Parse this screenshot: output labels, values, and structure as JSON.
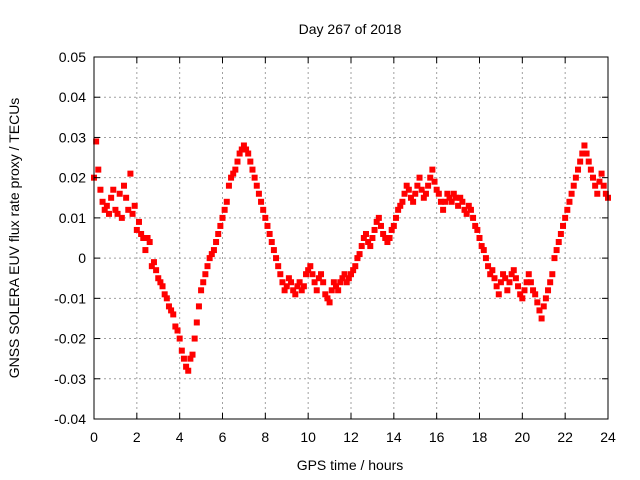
{
  "chart_data": {
    "type": "scatter",
    "title": "Day 267 of 2018",
    "xlabel": "GPS time / hours",
    "ylabel": "GNSS SOLERA EUV flux rate proxy / TECUs",
    "xlim": [
      0,
      24
    ],
    "ylim": [
      -0.04,
      0.05
    ],
    "xticks": [
      0,
      2,
      4,
      6,
      8,
      10,
      12,
      14,
      16,
      18,
      20,
      22,
      24
    ],
    "xtick_labels": [
      "0",
      "2",
      "4",
      "6",
      "8",
      "10",
      "12",
      "14",
      "16",
      "18",
      "20",
      "22",
      "24"
    ],
    "yticks": [
      -0.04,
      -0.03,
      -0.02,
      -0.01,
      0,
      0.01,
      0.02,
      0.03,
      0.04,
      0.05
    ],
    "ytick_labels": [
      "-0.04",
      "-0.03",
      "-0.02",
      "-0.01",
      "0",
      "0.01",
      "0.02",
      "0.03",
      "0.04",
      "0.05"
    ],
    "grid": true,
    "marker": "square",
    "color": "#ff0000",
    "series": [
      {
        "x": [
          0.0,
          0.1,
          0.2,
          0.3,
          0.4,
          0.5,
          0.6,
          0.7,
          0.8,
          0.9,
          1.0,
          1.1,
          1.2,
          1.3,
          1.4,
          1.5,
          1.6,
          1.7,
          1.8,
          1.9,
          2.0,
          2.1,
          2.2,
          2.3,
          2.4,
          2.5,
          2.6,
          2.7,
          2.8,
          2.9,
          3.0,
          3.1,
          3.2,
          3.3,
          3.4,
          3.5,
          3.6,
          3.7,
          3.8,
          3.9,
          4.0,
          4.1,
          4.2,
          4.3,
          4.4,
          4.5,
          4.6,
          4.7,
          4.8,
          4.9,
          5.0,
          5.1,
          5.2,
          5.3,
          5.4,
          5.5,
          5.6,
          5.7,
          5.8,
          5.9,
          6.0,
          6.1,
          6.2,
          6.3,
          6.4,
          6.5,
          6.6,
          6.7,
          6.8,
          6.9,
          7.0,
          7.1,
          7.2,
          7.3,
          7.4,
          7.5,
          7.6,
          7.7,
          7.8,
          7.9,
          8.0,
          8.1,
          8.2,
          8.3,
          8.4,
          8.5,
          8.6,
          8.7,
          8.8,
          8.9,
          9.0,
          9.1,
          9.2,
          9.3,
          9.4,
          9.5,
          9.6,
          9.7,
          9.8,
          9.9,
          10.0,
          10.1,
          10.2,
          10.3,
          10.4,
          10.5,
          10.6,
          10.7,
          10.8,
          10.9,
          11.0,
          11.1,
          11.2,
          11.3,
          11.4,
          11.5,
          11.6,
          11.7,
          11.8,
          11.9,
          12.0,
          12.1,
          12.2,
          12.3,
          12.4,
          12.5,
          12.6,
          12.7,
          12.8,
          12.9,
          13.0,
          13.1,
          13.2,
          13.3,
          13.4,
          13.5,
          13.6,
          13.7,
          13.8,
          13.9,
          14.0,
          14.1,
          14.2,
          14.3,
          14.4,
          14.5,
          14.6,
          14.7,
          14.8,
          14.9,
          15.0,
          15.1,
          15.2,
          15.3,
          15.4,
          15.5,
          15.6,
          15.7,
          15.8,
          15.9,
          16.0,
          16.1,
          16.2,
          16.3,
          16.4,
          16.5,
          16.6,
          16.7,
          16.8,
          16.9,
          17.0,
          17.1,
          17.2,
          17.3,
          17.4,
          17.5,
          17.6,
          17.7,
          17.8,
          17.9,
          18.0,
          18.1,
          18.2,
          18.3,
          18.4,
          18.5,
          18.6,
          18.7,
          18.8,
          18.9,
          19.0,
          19.1,
          19.2,
          19.3,
          19.4,
          19.5,
          19.6,
          19.7,
          19.8,
          19.9,
          20.0,
          20.1,
          20.2,
          20.3,
          20.4,
          20.5,
          20.6,
          20.7,
          20.8,
          20.9,
          21.0,
          21.1,
          21.2,
          21.3,
          21.4,
          21.5,
          21.6,
          21.7,
          21.8,
          21.9,
          22.0,
          22.1,
          22.2,
          22.3,
          22.4,
          22.5,
          22.6,
          22.7,
          22.8,
          22.9,
          23.0,
          23.1,
          23.2,
          23.3,
          23.4,
          23.5,
          23.6,
          23.7,
          23.8,
          23.9,
          24.0
        ],
        "values": [
          0.02,
          0.029,
          0.022,
          0.017,
          0.014,
          0.012,
          0.013,
          0.011,
          0.015,
          0.017,
          0.012,
          0.011,
          0.016,
          0.01,
          0.018,
          0.015,
          0.012,
          0.021,
          0.011,
          0.013,
          0.007,
          0.009,
          0.006,
          0.005,
          0.002,
          0.005,
          0.004,
          -0.002,
          -0.001,
          -0.003,
          -0.005,
          -0.006,
          -0.007,
          -0.009,
          -0.01,
          -0.012,
          -0.013,
          -0.014,
          -0.017,
          -0.018,
          -0.02,
          -0.023,
          -0.025,
          -0.027,
          -0.028,
          -0.025,
          -0.024,
          -0.02,
          -0.016,
          -0.012,
          -0.008,
          -0.006,
          -0.004,
          -0.002,
          0.0,
          0.001,
          0.002,
          0.004,
          0.006,
          0.008,
          0.01,
          0.012,
          0.014,
          0.018,
          0.02,
          0.021,
          0.022,
          0.024,
          0.026,
          0.027,
          0.028,
          0.027,
          0.026,
          0.024,
          0.022,
          0.02,
          0.018,
          0.016,
          0.014,
          0.012,
          0.01,
          0.008,
          0.006,
          0.004,
          0.002,
          0.0,
          -0.002,
          -0.004,
          -0.006,
          -0.008,
          -0.007,
          -0.005,
          -0.006,
          -0.008,
          -0.009,
          -0.007,
          -0.006,
          -0.008,
          -0.007,
          -0.004,
          -0.003,
          -0.002,
          -0.004,
          -0.006,
          -0.008,
          -0.005,
          -0.004,
          -0.006,
          -0.009,
          -0.01,
          -0.011,
          -0.008,
          -0.006,
          -0.007,
          -0.008,
          -0.006,
          -0.005,
          -0.004,
          -0.006,
          -0.005,
          -0.004,
          -0.003,
          -0.002,
          0.0,
          0.001,
          0.003,
          0.005,
          0.006,
          0.004,
          0.003,
          0.005,
          0.007,
          0.009,
          0.01,
          0.008,
          0.006,
          0.005,
          0.004,
          0.005,
          0.007,
          0.008,
          0.01,
          0.012,
          0.013,
          0.014,
          0.016,
          0.018,
          0.017,
          0.015,
          0.014,
          0.016,
          0.018,
          0.02,
          0.017,
          0.015,
          0.016,
          0.018,
          0.02,
          0.022,
          0.019,
          0.017,
          0.016,
          0.014,
          0.012,
          0.014,
          0.016,
          0.015,
          0.014,
          0.016,
          0.015,
          0.013,
          0.015,
          0.014,
          0.012,
          0.011,
          0.013,
          0.012,
          0.01,
          0.008,
          0.007,
          0.005,
          0.003,
          0.002,
          0.0,
          -0.002,
          -0.004,
          -0.003,
          -0.005,
          -0.007,
          -0.009,
          -0.006,
          -0.004,
          -0.005,
          -0.008,
          -0.006,
          -0.004,
          -0.003,
          -0.005,
          -0.007,
          -0.009,
          -0.01,
          -0.008,
          -0.006,
          -0.004,
          -0.006,
          -0.008,
          -0.009,
          -0.011,
          -0.013,
          -0.015,
          -0.012,
          -0.01,
          -0.008,
          -0.006,
          -0.004,
          0.0,
          0.002,
          0.004,
          0.006,
          0.008,
          0.01,
          0.012,
          0.014,
          0.016,
          0.018,
          0.02,
          0.022,
          0.024,
          0.026,
          0.028,
          0.026,
          0.024,
          0.022,
          0.02,
          0.018,
          0.016,
          0.019,
          0.021,
          0.018,
          0.016,
          0.015
        ]
      }
    ]
  }
}
